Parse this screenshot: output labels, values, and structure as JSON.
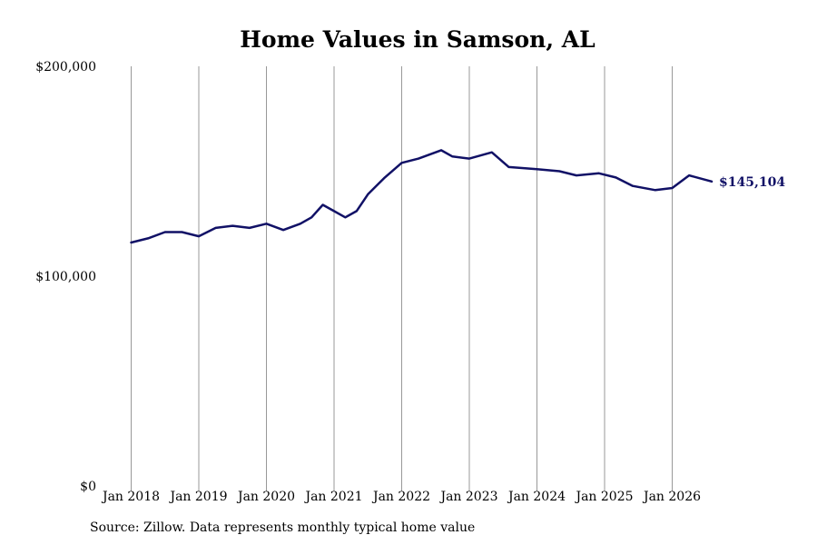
{
  "chart_data": {
    "type": "line",
    "title": "Home Values in Samson, AL",
    "xlabel": "",
    "ylabel": "",
    "ylim": [
      0,
      200000
    ],
    "y_ticks": [
      {
        "value": 0,
        "label": "$0"
      },
      {
        "value": 100000,
        "label": "$100,000"
      },
      {
        "value": 200000,
        "label": "$200,000"
      }
    ],
    "x_ticks": [
      "Jan 2018",
      "Jan 2019",
      "Jan 2020",
      "Jan 2021",
      "Jan 2022",
      "Jan 2023",
      "Jan 2024",
      "Jan 2025",
      "Jan 2026"
    ],
    "grid": "vertical",
    "line_color": "#111166",
    "grid_color": "#999999",
    "end_label": "$145,104",
    "series": [
      {
        "x": [
          "2018-01",
          "2018-04",
          "2018-07",
          "2018-10",
          "2019-01",
          "2019-04",
          "2019-07",
          "2019-10",
          "2020-01",
          "2020-04",
          "2020-07",
          "2020-09",
          "2020-11",
          "2021-01",
          "2021-03",
          "2021-05",
          "2021-07",
          "2021-10",
          "2022-01",
          "2022-04",
          "2022-08",
          "2022-10",
          "2023-01",
          "2023-05",
          "2023-08",
          "2024-01",
          "2024-05",
          "2024-08",
          "2024-12",
          "2025-03",
          "2025-06",
          "2025-10",
          "2026-01",
          "2026-04",
          "2026-08"
        ],
        "values": [
          116000,
          118000,
          121000,
          121000,
          119000,
          123000,
          124000,
          123000,
          125000,
          122000,
          125000,
          128000,
          134000,
          131000,
          128000,
          131000,
          139000,
          147000,
          154000,
          156000,
          160000,
          157000,
          156000,
          159000,
          152000,
          151000,
          150000,
          148000,
          149000,
          147000,
          143000,
          141000,
          142000,
          148000,
          145104
        ]
      }
    ]
  },
  "footer": {
    "source": "Source: Zillow. Data represents monthly typical home value"
  }
}
